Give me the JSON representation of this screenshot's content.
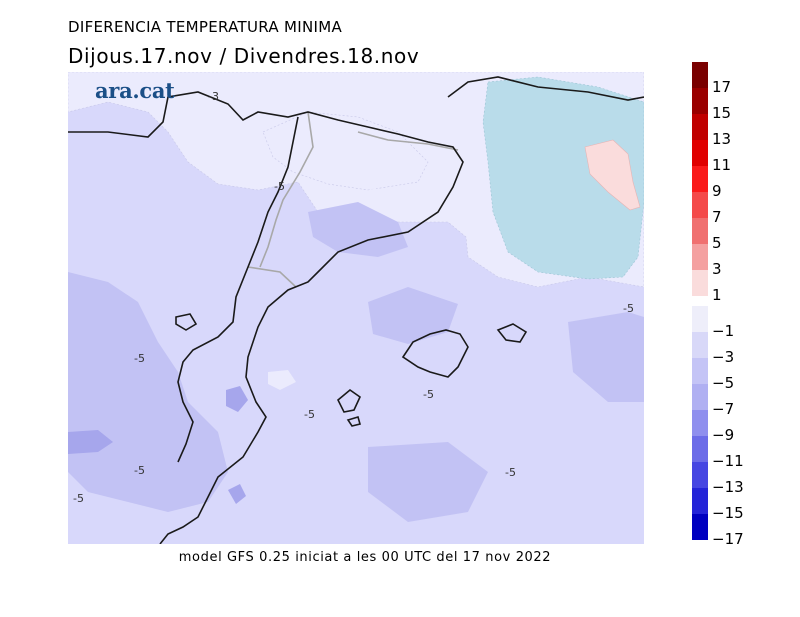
{
  "header": {
    "title": "DIFERENCIA TEMPERATURA MINIMA",
    "subtitle": "Dijous.17.nov / Divendres.18.nov"
  },
  "logo_text": "ara.cat",
  "footer": "model GFS 0.25 iniciat a les 00 UTC del 17 nov 2022",
  "map_labels": [
    "-3",
    "-5",
    "-5",
    "-5",
    "-5",
    "-5",
    "-5",
    "-5",
    "-5"
  ],
  "legend": {
    "colors": [
      "#7a0000",
      "#9a0000",
      "#c00000",
      "#e00000",
      "#fa1a1a",
      "#f44a4a",
      "#f07070",
      "#f4a0a0",
      "#fadcdc",
      "#eeeefa",
      "#d8d8f8",
      "#c4c4f6",
      "#b0b0f2",
      "#8f8fee",
      "#6c6ce8",
      "#4646e2",
      "#2424d8",
      "#0000c0"
    ],
    "labels": [
      "17",
      "15",
      "13",
      "11",
      "9",
      "7",
      "5",
      "3",
      "1",
      "−1",
      "−3",
      "−5",
      "−7",
      "−9",
      "−11",
      "−13",
      "−15",
      "−17"
    ]
  },
  "colors": {
    "field_dominant": "#d8d8fb",
    "field_light": "#ebebfd",
    "field_dark": "#c2c2f4",
    "field_darker": "#a6a6ec",
    "sea_warm": "#b9dcea",
    "warm_spot": "#fadcdc",
    "coast": "#1a1a1a",
    "border": "#a8a8a8"
  }
}
